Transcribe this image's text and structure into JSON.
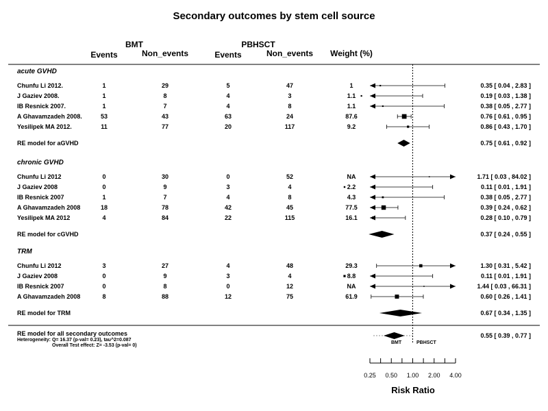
{
  "chart_data": {
    "type": "forest",
    "title": "Secondary outcomes by stem cell source",
    "group_headers": {
      "left": "BMT",
      "right": "PBHSCT"
    },
    "column_headers": [
      "Events",
      "Non_events",
      "Events",
      "Non_events",
      "Weight (%)"
    ],
    "xlabel": "Risk Ratio",
    "x_scale": "log2",
    "xlim": [
      0.25,
      4.0
    ],
    "xticks": [
      0.25,
      0.5,
      1.0,
      2.0,
      4.0
    ],
    "xtick_labels": [
      "0.25",
      "0.50",
      "1.00",
      "2.00",
      "4.00"
    ],
    "reference_line": 1.0,
    "favours": {
      "left": "BMT",
      "right": "PBHSCT"
    },
    "groups": [
      {
        "label": "acute GVHD",
        "studies": [
          {
            "study": "Chunfu Li 2012.",
            "bmt_events": "1",
            "bmt_non_events": "29",
            "pb_events": "5",
            "pb_non_events": "47",
            "weight": "1",
            "rr": 0.35,
            "lower": 0.04,
            "upper": 2.83,
            "ci_text": "0.35 [ 0.04 ,  2.83 ]"
          },
          {
            "study": "J Gaziev 2008.",
            "bmt_events": "1",
            "bmt_non_events": "8",
            "pb_events": "4",
            "pb_non_events": "3",
            "weight": "1.1",
            "rr": 0.19,
            "lower": 0.03,
            "upper": 1.38,
            "ci_text": "0.19 [ 0.03 ,  1.38 ]"
          },
          {
            "study": "IB Resnick 2007.",
            "bmt_events": "1",
            "bmt_non_events": "7",
            "pb_events": "4",
            "pb_non_events": "8",
            "weight": "1.1",
            "rr": 0.38,
            "lower": 0.05,
            "upper": 2.77,
            "ci_text": "0.38 [ 0.05 ,  2.77 ]"
          },
          {
            "study": "A Ghavamzadeh 2008.",
            "bmt_events": "53",
            "bmt_non_events": "43",
            "pb_events": "63",
            "pb_non_events": "24",
            "weight": "87.6",
            "rr": 0.76,
            "lower": 0.61,
            "upper": 0.95,
            "ci_text": "0.76 [ 0.61 ,  0.95 ]"
          },
          {
            "study": "Yesilipek MA 2012.",
            "bmt_events": "11",
            "bmt_non_events": "77",
            "pb_events": "20",
            "pb_non_events": "117",
            "weight": "9.2",
            "rr": 0.86,
            "lower": 0.43,
            "upper": 1.7,
            "ci_text": "0.86 [ 0.43 ,  1.70 ]"
          }
        ],
        "summary": {
          "label": "RE model for aGVHD",
          "rr": 0.75,
          "lower": 0.61,
          "upper": 0.92,
          "ci_text": "0.75 [ 0.61 , 0.92 ]"
        }
      },
      {
        "label": "chronic GVHD",
        "studies": [
          {
            "study": "Chunfu Li 2012",
            "bmt_events": "0",
            "bmt_non_events": "30",
            "pb_events": "0",
            "pb_non_events": "52",
            "weight": "NA",
            "rr": 1.71,
            "lower": 0.03,
            "upper": 84.02,
            "ci_text": "1.71 [ 0.03 , 84.02 ]"
          },
          {
            "study": "J Gaziev 2008",
            "bmt_events": "0",
            "bmt_non_events": "9",
            "pb_events": "3",
            "pb_non_events": "4",
            "weight": "2.2",
            "rr": 0.11,
            "lower": 0.01,
            "upper": 1.91,
            "ci_text": "0.11 [ 0.01 ,  1.91 ]"
          },
          {
            "study": "IB Resnick 2007",
            "bmt_events": "1",
            "bmt_non_events": "7",
            "pb_events": "4",
            "pb_non_events": "8",
            "weight": "4.3",
            "rr": 0.38,
            "lower": 0.05,
            "upper": 2.77,
            "ci_text": "0.38 [ 0.05 ,  2.77 ]"
          },
          {
            "study": "A Ghavamzadeh 2008",
            "bmt_events": "18",
            "bmt_non_events": "78",
            "pb_events": "42",
            "pb_non_events": "45",
            "weight": "77.5",
            "rr": 0.39,
            "lower": 0.24,
            "upper": 0.62,
            "ci_text": "0.39 [ 0.24 ,  0.62 ]"
          },
          {
            "study": "Yesilipek MA 2012",
            "bmt_events": "4",
            "bmt_non_events": "84",
            "pb_events": "22",
            "pb_non_events": "115",
            "weight": "16.1",
            "rr": 0.28,
            "lower": 0.1,
            "upper": 0.79,
            "ci_text": "0.28 [ 0.10 ,  0.79 ]"
          }
        ],
        "summary": {
          "label": "RE model for cGVHD",
          "rr": 0.37,
          "lower": 0.24,
          "upper": 0.55,
          "ci_text": "0.37 [ 0.24 , 0.55 ]"
        }
      },
      {
        "label": "TRM",
        "studies": [
          {
            "study": "Chunfu Li 2012",
            "bmt_events": "3",
            "bmt_non_events": "27",
            "pb_events": "4",
            "pb_non_events": "48",
            "weight": "29.3",
            "rr": 1.3,
            "lower": 0.31,
            "upper": 5.42,
            "ci_text": "1.30 [ 0.31 ,  5.42 ]"
          },
          {
            "study": "J Gaziev 2008",
            "bmt_events": "0",
            "bmt_non_events": "9",
            "pb_events": "3",
            "pb_non_events": "4",
            "weight": "8.8",
            "rr": 0.11,
            "lower": 0.01,
            "upper": 1.91,
            "ci_text": "0.11 [ 0.01 ,  1.91 ]"
          },
          {
            "study": "IB Resnick 2007",
            "bmt_events": "0",
            "bmt_non_events": "8",
            "pb_events": "0",
            "pb_non_events": "12",
            "weight": "NA",
            "rr": 1.44,
            "lower": 0.03,
            "upper": 66.31,
            "ci_text": "1.44 [ 0.03 , 66.31 ]"
          },
          {
            "study": "A Ghavamzadeh 2008",
            "bmt_events": "8",
            "bmt_non_events": "88",
            "pb_events": "12",
            "pb_non_events": "75",
            "weight": "61.9",
            "rr": 0.6,
            "lower": 0.26,
            "upper": 1.41,
            "ci_text": "0.60 [ 0.26 ,  1.41 ]"
          }
        ],
        "summary": {
          "label": "RE model for TRM",
          "rr": 0.67,
          "lower": 0.34,
          "upper": 1.35,
          "ci_text": "0.67 [ 0.34 , 1.35 ]"
        }
      }
    ],
    "overall": {
      "label": "RE model for all secondary outcomes",
      "heterogeneity": "Heterogeneity:   Q= 16.37 (p-val= 0.23),     tau^2=0.087",
      "test_effect": "Overall Test effect:  Z= -3.53 (p-val= 0)",
      "rr": 0.55,
      "lower": 0.39,
      "upper": 0.77,
      "ci_text": "0.55 [ 0.39 ,  0.77 ]"
    }
  }
}
